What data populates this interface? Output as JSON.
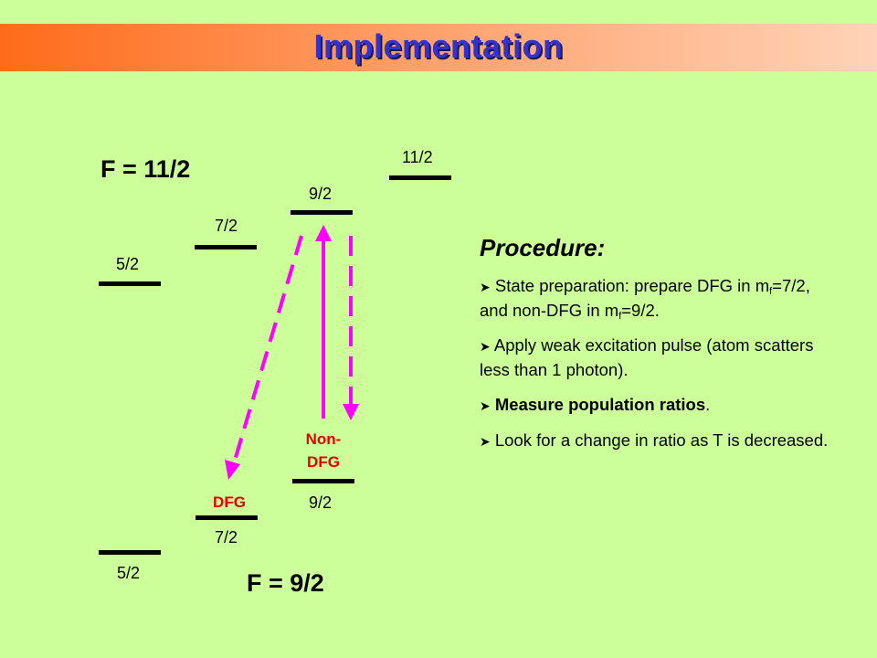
{
  "title": "Implementation",
  "upper_manifold": {
    "label": "F = 11/2",
    "levels": [
      "5/2",
      "7/2",
      "9/2",
      "11/2"
    ]
  },
  "lower_manifold": {
    "label": "F = 9/2",
    "levels": [
      "5/2",
      "7/2",
      "9/2"
    ]
  },
  "state_labels": {
    "dfg": "DFG",
    "non_dfg_line1": "Non-",
    "non_dfg_line2": "DFG"
  },
  "arrow_colors": {
    "transition": "#ff00ff"
  },
  "procedure": {
    "heading": "Procedure:",
    "bullet_icon": "arrowhead-bullet-icon",
    "b1": {
      "part1": "State preparation: prepare DFG in m",
      "sub1": "f",
      "part2": "=7/2, and non-DFG in m",
      "sub2": "f",
      "part3": "=9/2."
    },
    "b2": "Apply weak excitation pulse (atom scatters less than 1 photon).",
    "b3": {
      "bold": "Measure population ratios",
      "tail": "."
    },
    "b4": "Look for a change in ratio as T is decreased."
  }
}
